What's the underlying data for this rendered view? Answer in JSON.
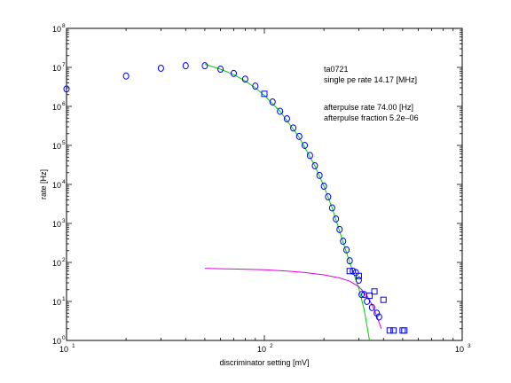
{
  "chart_data": {
    "type": "scatter",
    "xlabel": "discriminator setting [mV]",
    "ylabel": "rate [Hz]",
    "xscale": "log",
    "yscale": "log",
    "xlim": [
      10,
      1000
    ],
    "ylim": [
      1,
      100000000
    ],
    "grid": false,
    "x_ticks": [
      {
        "value": 10,
        "base": "10",
        "exp": "1"
      },
      {
        "value": 100,
        "base": "10",
        "exp": "2"
      },
      {
        "value": 1000,
        "base": "10",
        "exp": "3"
      }
    ],
    "y_ticks": [
      {
        "value": 1,
        "base": "10",
        "exp": "0"
      },
      {
        "value": 10,
        "base": "10",
        "exp": "1"
      },
      {
        "value": 100,
        "base": "10",
        "exp": "2"
      },
      {
        "value": 1000,
        "base": "10",
        "exp": "3"
      },
      {
        "value": 10000,
        "base": "10",
        "exp": "4"
      },
      {
        "value": 100000,
        "base": "10",
        "exp": "5"
      },
      {
        "value": 1000000,
        "base": "10",
        "exp": "6"
      },
      {
        "value": 10000000,
        "base": "10",
        "exp": "7"
      },
      {
        "value": 100000000,
        "base": "10",
        "exp": "8"
      }
    ],
    "annotations": [
      "ta0721",
      "single pe rate 14.17 [MHz]",
      "afterpulse rate 74.00 [Hz]",
      "afterpulse fraction 5.2e–06"
    ],
    "series": [
      {
        "marker": "circle",
        "color": "#0000ff",
        "points": [
          [
            10,
            2800000
          ],
          [
            20,
            6000000
          ],
          [
            30,
            9500000
          ],
          [
            40,
            11000000
          ],
          [
            50,
            11000000
          ],
          [
            60,
            9000000
          ],
          [
            70,
            7000000
          ],
          [
            80,
            5000000
          ],
          [
            90,
            3300000
          ],
          [
            110,
            1300000
          ],
          [
            120,
            750000
          ],
          [
            130,
            480000
          ],
          [
            140,
            280000
          ],
          [
            150,
            170000
          ],
          [
            160,
            100000
          ],
          [
            170,
            55000
          ],
          [
            180,
            30000
          ],
          [
            190,
            17000
          ],
          [
            200,
            9000
          ],
          [
            210,
            4800
          ],
          [
            220,
            2500
          ],
          [
            230,
            1300
          ],
          [
            240,
            700
          ],
          [
            250,
            350
          ],
          [
            260,
            210
          ],
          [
            270,
            110
          ],
          [
            280,
            60
          ],
          [
            290,
            55
          ],
          [
            300,
            35
          ],
          [
            310,
            15
          ],
          [
            320,
            15
          ],
          [
            330,
            10
          ],
          [
            350,
            7
          ],
          [
            370,
            5
          ],
          [
            380,
            4
          ]
        ]
      },
      {
        "marker": "square",
        "color": "#0000ff",
        "points": [
          [
            100,
            2100000
          ],
          [
            270,
            60
          ],
          [
            300,
            45
          ],
          [
            340,
            14
          ],
          [
            360,
            18
          ],
          [
            400,
            11
          ],
          [
            430,
            1.8
          ],
          [
            450,
            1.8
          ],
          [
            500,
            1.8
          ],
          [
            510,
            1.8
          ]
        ]
      },
      {
        "type": "line",
        "color": "#00cc00",
        "points": [
          [
            50,
            12000000
          ],
          [
            60,
            9000000
          ],
          [
            70,
            6500000
          ],
          [
            80,
            4500000
          ],
          [
            90,
            3000000
          ],
          [
            100,
            1900000
          ],
          [
            120,
            750000
          ],
          [
            150,
            160000
          ],
          [
            180,
            30000
          ],
          [
            200,
            9000
          ],
          [
            220,
            2500
          ],
          [
            250,
            330
          ],
          [
            270,
            100
          ],
          [
            300,
            22
          ],
          [
            320,
            6
          ],
          [
            340,
            1
          ]
        ]
      },
      {
        "type": "line",
        "color": "#dd00dd",
        "points": [
          [
            50,
            70
          ],
          [
            70,
            68
          ],
          [
            100,
            65
          ],
          [
            130,
            60
          ],
          [
            160,
            55
          ],
          [
            200,
            48
          ],
          [
            240,
            40
          ],
          [
            270,
            33
          ],
          [
            300,
            24
          ],
          [
            320,
            17
          ],
          [
            340,
            11
          ],
          [
            360,
            6
          ],
          [
            375,
            3.5
          ],
          [
            390,
            2
          ]
        ]
      }
    ]
  }
}
